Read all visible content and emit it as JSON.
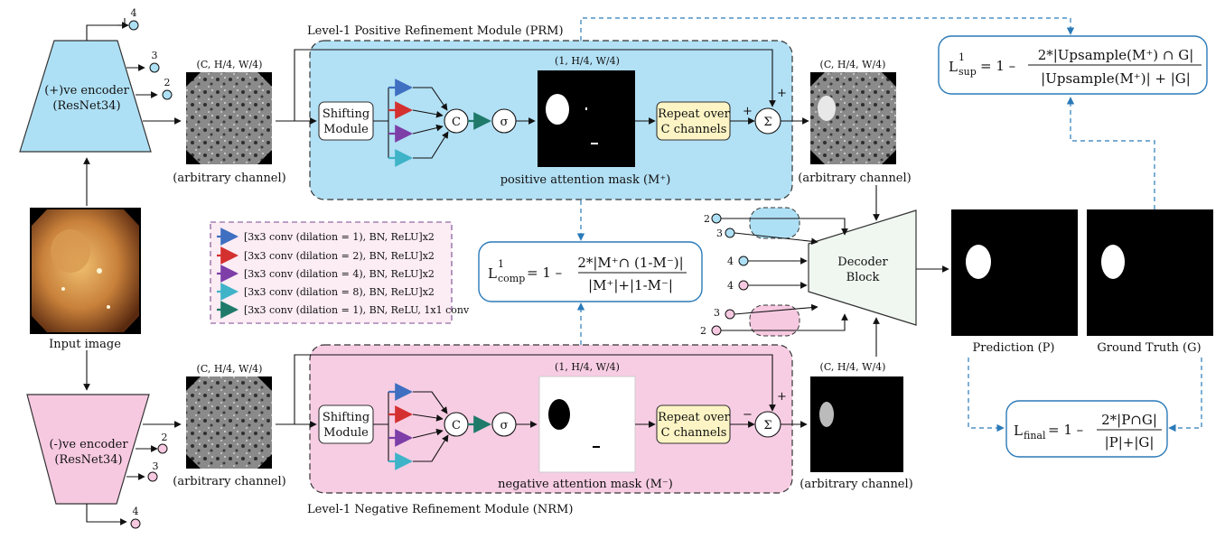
{
  "modules": {
    "prm_title": "Level-1 Positive Refinement Module (PRM)",
    "nrm_title": "Level-1 Negative Refinement Module (NRM)"
  },
  "encoders": {
    "positive": {
      "line1": "(+)ve encoder",
      "line2": "(ResNet34)",
      "color": "#aee0f5"
    },
    "negative": {
      "line1": "(-)ve encoder",
      "line2": "(ResNet34)",
      "color": "#f7c9e1"
    },
    "pos_levels": [
      "4",
      "3",
      "2"
    ],
    "neg_levels": [
      "2",
      "3",
      "4"
    ]
  },
  "input_image_label": "Input image",
  "feature_dims": "(C, H/4, W/4)",
  "mask_dims": "(1, H/4, W/4)",
  "arbitrary_channel": "(arbitrary channel)",
  "shifting_module": {
    "line1": "Shifting",
    "line2": "Module"
  },
  "concat_symbol": "C",
  "sigma_symbol": "σ",
  "sum_symbol": "Σ",
  "repeat_box": {
    "line1": "Repeat over",
    "line2": "C channels"
  },
  "positive_mask_label": "positive attention mask (M⁺)",
  "negative_mask_label": "negative attention mask (M⁻)",
  "signs": {
    "plus": "+",
    "minus": "−"
  },
  "legend": {
    "items": [
      {
        "label": "[3x3 conv (dilation = 1), BN, ReLU]x2",
        "color": "#3f6fc0"
      },
      {
        "label": "[3x3 conv (dilation = 2), BN, ReLU]x2",
        "color": "#d43030"
      },
      {
        "label": "[3x3 conv (dilation = 4), BN, ReLU]x2",
        "color": "#7d3ea8"
      },
      {
        "label": "[3x3 conv (dilation = 8), BN, ReLU]x2",
        "color": "#3fb3c8"
      },
      {
        "label": "[3x3 conv (dilation = 1), BN, ReLU, 1x1 conv",
        "color": "#1f7a6a"
      }
    ]
  },
  "decoder": {
    "line1": "Decoder",
    "line2": "Block",
    "inputs": [
      "2",
      "3",
      "4",
      "4",
      "3",
      "2"
    ]
  },
  "prediction_label": "Prediction (P)",
  "ground_truth_label": "Ground Truth (G)",
  "losses": {
    "sup": {
      "lhs": "L",
      "sup": "1",
      "sub": "sup",
      "eq": "= 1 –",
      "num": "2*|Upsample(M⁺) ∩ G|",
      "den": "|Upsample(M⁺)| + |G|"
    },
    "comp": {
      "lhs": "L",
      "sup": "1",
      "sub": "comp",
      "eq": "= 1 –",
      "num": "2*|M⁺∩ (1-M⁻)|",
      "den": "|M⁺|+|1-M⁻|"
    },
    "final": {
      "lhs": "L",
      "sub": "final",
      "eq": "= 1 –",
      "num": "2*|P∩G|",
      "den": "|P|+|G|"
    }
  }
}
